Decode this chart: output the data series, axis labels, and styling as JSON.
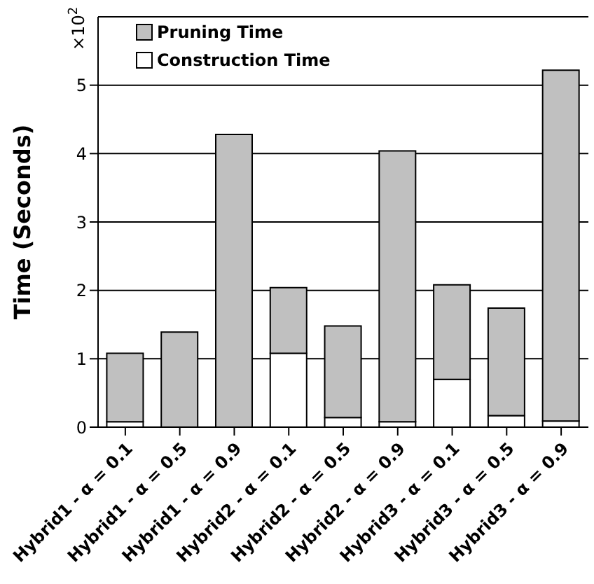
{
  "chart_data": {
    "type": "bar",
    "stacked": true,
    "ylabel": "Time (Seconds)",
    "annotations": [
      "×10$^{2}$"
    ],
    "categories": [
      "Hybrid1 - α = 0.1",
      "Hybrid1 - α = 0.5",
      "Hybrid1 - α = 0.9",
      "Hybrid2 - α = 0.1",
      "Hybrid2 - α = 0.5",
      "Hybrid2 - α = 0.9",
      "Hybrid3 - α = 0.1",
      "Hybrid3 - α = 0.5",
      "Hybrid3 - α = 0.9"
    ],
    "series": [
      {
        "name": "Construction Time",
        "color": "#ffffff",
        "values": [
          0.08,
          null,
          0,
          1.08,
          0.14,
          0.08,
          0.7,
          0.17,
          0.09
        ]
      },
      {
        "name": "Pruning Time",
        "color": "#c0c0c0",
        "values": [
          1.0,
          1.39,
          4.28,
          0.96,
          1.34,
          3.96,
          1.38,
          1.57,
          5.13
        ]
      }
    ],
    "ylim": [
      0,
      6
    ],
    "yticks": [
      0,
      1,
      2,
      3,
      4,
      5
    ],
    "grid": "y",
    "legend": "top left"
  }
}
